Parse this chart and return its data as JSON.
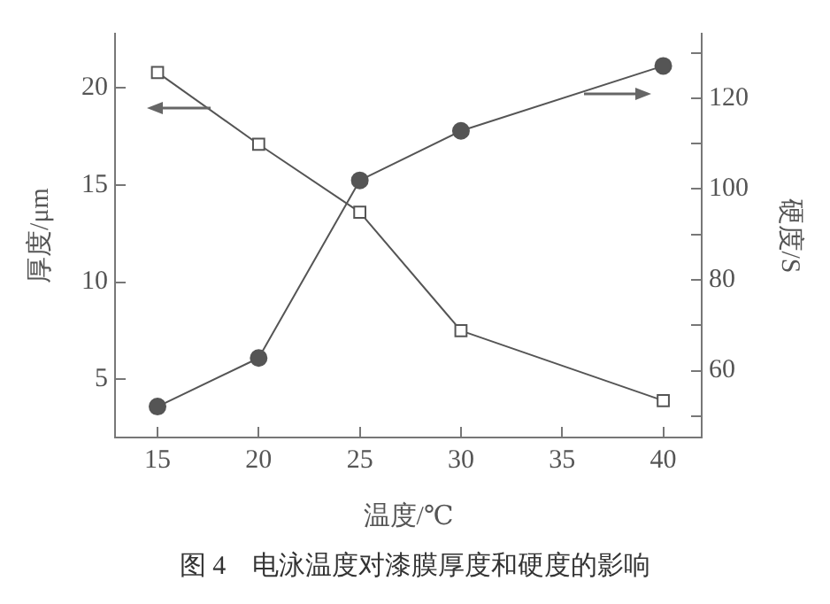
{
  "chart_data": {
    "type": "line",
    "xlabel": "温度/℃",
    "ylabel": "厚度/μm",
    "y2label": "硬度/S",
    "annotations": [
      "图 4　电泳温度对漆膜厚度和硬度的影响"
    ],
    "x": [
      15,
      20,
      25,
      30,
      40
    ],
    "series": [
      {
        "color": "#555555",
        "marker": "square",
        "values": [
          20.8,
          17.1,
          13.6,
          7.5,
          3.9
        ]
      },
      {
        "color": "#555555",
        "marker": "circle",
        "axis": "y2",
        "values": [
          52.1,
          62.8,
          101.9,
          112.8,
          127.1
        ]
      }
    ],
    "xlim": [
      12.9,
      41.9
    ],
    "xticks": [
      15,
      20,
      25,
      30,
      35,
      40
    ],
    "ylim": [
      2,
      22.8
    ],
    "yticks": [
      5,
      10,
      15,
      20
    ],
    "y2lim": [
      45.3,
      134.2
    ],
    "y2ticks": [
      {
        "value": 50,
        "label": null
      },
      60,
      {
        "value": 70,
        "label": null
      },
      80,
      {
        "value": 90,
        "label": null
      },
      100,
      {
        "value": 110,
        "label": null
      },
      120,
      {
        "value": 130,
        "label": null
      }
    ],
    "grid": false,
    "legend": false,
    "line_style": "solid"
  }
}
